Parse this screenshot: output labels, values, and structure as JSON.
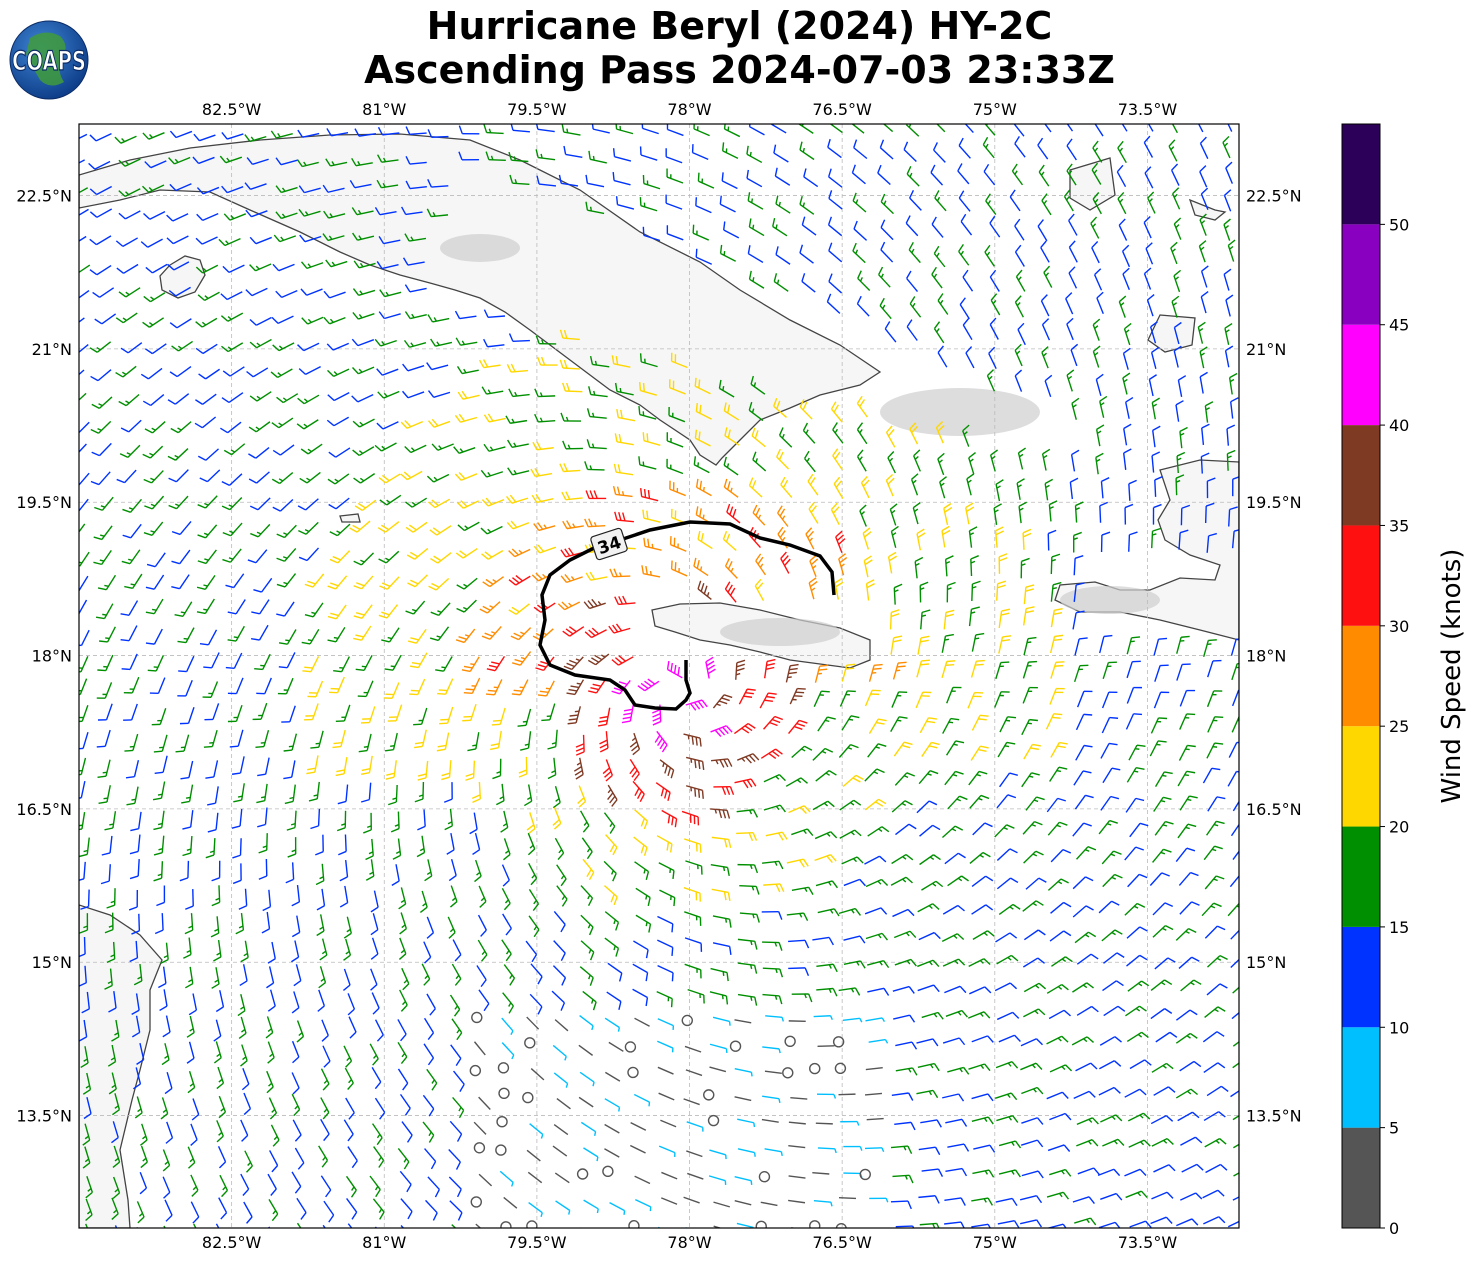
{
  "header": {
    "title_line1": "Hurricane Beryl (2024) HY-2C",
    "title_line2": "Ascending Pass 2024-07-03 23:33Z",
    "logo_text": "COAPS"
  },
  "map": {
    "lon_labels": [
      "82.5°W",
      "81°W",
      "79.5°W",
      "78°W",
      "76.5°W",
      "75°W",
      "73.5°W"
    ],
    "lat_labels": [
      "22.5°N",
      "21°N",
      "19.5°N",
      "18°N",
      "16.5°N",
      "15°N",
      "13.5°N"
    ],
    "lon_ticks": [
      -82.5,
      -81,
      -79.5,
      -78,
      -76.5,
      -75,
      -73.5
    ],
    "lat_ticks": [
      22.5,
      21,
      19.5,
      18,
      16.5,
      15,
      13.5
    ],
    "extent": {
      "lon_min": -84,
      "lon_max": -72.6,
      "lat_min": 12.4,
      "lat_max": 23.2
    },
    "storm_center": {
      "lon": -78.1,
      "lat": 17.6
    },
    "contour_label": "34",
    "gridlines": true
  },
  "colorbar": {
    "title": "Wind Speed (knots)",
    "tick_labels": [
      "0",
      "5",
      "10",
      "15",
      "20",
      "25",
      "30",
      "35",
      "40",
      "45",
      "50"
    ],
    "bins": [
      {
        "min": 0,
        "max": 5,
        "color": "#555555"
      },
      {
        "min": 5,
        "max": 10,
        "color": "#00bfff"
      },
      {
        "min": 10,
        "max": 15,
        "color": "#0033ff"
      },
      {
        "min": 15,
        "max": 20,
        "color": "#008f00"
      },
      {
        "min": 20,
        "max": 25,
        "color": "#ffd700"
      },
      {
        "min": 25,
        "max": 30,
        "color": "#ff8c00"
      },
      {
        "min": 30,
        "max": 35,
        "color": "#ff1010"
      },
      {
        "min": 35,
        "max": 40,
        "color": "#7f3a24"
      },
      {
        "min": 40,
        "max": 45,
        "color": "#ff00ff"
      },
      {
        "min": 45,
        "max": 50,
        "color": "#8a00c0"
      },
      {
        "min": 50,
        "max": 55,
        "color": "#2c0059"
      }
    ]
  }
}
